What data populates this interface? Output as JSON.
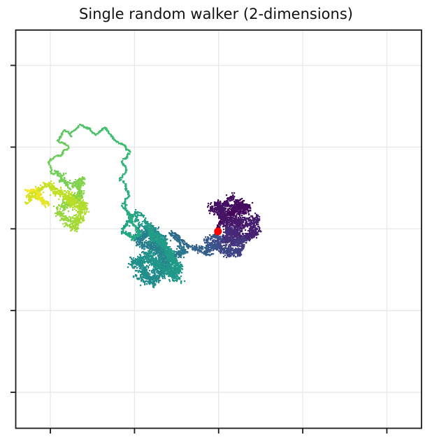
{
  "chart_data": {
    "type": "scatter",
    "title": "Single random walker (2-dimensions)",
    "description": "Trajectory of a single 2D random walker, points colored by time step (viridis colormap); red dot marks the starting point at the origin.",
    "xlabel": "",
    "ylabel": "",
    "xlim": [
      -60.3,
      60.3
    ],
    "ylim": [
      -61.0,
      60.8
    ],
    "xticks": [
      -50,
      -25,
      0,
      25,
      50
    ],
    "yticks": [
      -50,
      -25,
      0,
      25,
      50
    ],
    "tick_labels_visible": false,
    "ticks_sides": [
      "left",
      "bottom"
    ],
    "grid": true,
    "legend": "none",
    "colormap": "viridis",
    "viridis_stops": [
      "#440154",
      "#482475",
      "#414487",
      "#355f8d",
      "#2a788e",
      "#21918c",
      "#22a884",
      "#44bf70",
      "#7ad151",
      "#bddf26",
      "#fde725"
    ],
    "start_marker": {
      "x": -0.2,
      "y": -0.8,
      "color": "#ff0000",
      "radius_px": 5.5
    },
    "waypoints_format": [
      "x",
      "y",
      "time_fraction",
      "spread_px"
    ],
    "waypoints": [
      [
        -0.2,
        -0.9,
        0.0,
        6
      ],
      [
        1.2,
        3.6,
        0.01,
        10
      ],
      [
        5.4,
        6.8,
        0.02,
        12
      ],
      [
        8.5,
        5.8,
        0.03,
        12
      ],
      [
        3.3,
        8.3,
        0.04,
        13
      ],
      [
        -0.8,
        7.3,
        0.05,
        13
      ],
      [
        2.3,
        2.6,
        0.06,
        14
      ],
      [
        6.4,
        1.9,
        0.07,
        14
      ],
      [
        9.9,
        2.6,
        0.08,
        13
      ],
      [
        10.5,
        -1.1,
        0.09,
        12
      ],
      [
        7.0,
        -3.2,
        0.1,
        13
      ],
      [
        3.7,
        -0.6,
        0.11,
        13
      ],
      [
        1.2,
        -3.2,
        0.13,
        12
      ],
      [
        5.0,
        -4.9,
        0.15,
        12
      ],
      [
        7.9,
        -3.6,
        0.17,
        11
      ],
      [
        5.4,
        -7.1,
        0.19,
        11
      ],
      [
        1.7,
        -6.4,
        0.21,
        12
      ],
      [
        -1.7,
        -4.7,
        0.23,
        12
      ],
      [
        -0.4,
        -1.9,
        0.25,
        11
      ],
      [
        -3.3,
        -4.1,
        0.27,
        11
      ],
      [
        -2.5,
        -7.1,
        0.29,
        10
      ],
      [
        -5.6,
        -6.2,
        0.31,
        10
      ],
      [
        -8.7,
        -5.3,
        0.33,
        8
      ],
      [
        -11.6,
        -3.0,
        0.34,
        8
      ],
      [
        -14.0,
        -1.3,
        0.36,
        7
      ],
      [
        -11.8,
        -4.7,
        0.37,
        7
      ],
      [
        -10.1,
        -6.6,
        0.39,
        8
      ],
      [
        -13.2,
        -7.5,
        0.4,
        12
      ],
      [
        -16.9,
        -6.2,
        0.41,
        14
      ],
      [
        -21.1,
        -4.3,
        0.42,
        14
      ],
      [
        -23.6,
        -1.1,
        0.43,
        13
      ],
      [
        -20.7,
        0.2,
        0.44,
        13
      ],
      [
        -18.2,
        -3.2,
        0.45,
        15
      ],
      [
        -15.3,
        -9.6,
        0.46,
        15
      ],
      [
        -17.1,
        -13.7,
        0.47,
        15
      ],
      [
        -20.7,
        -15.8,
        0.48,
        14
      ],
      [
        -22.9,
        -12.6,
        0.49,
        14
      ],
      [
        -24.4,
        -9.4,
        0.5,
        14
      ],
      [
        -21.1,
        -7.5,
        0.51,
        15
      ],
      [
        -16.1,
        -12.6,
        0.52,
        15
      ],
      [
        -13.0,
        -14.7,
        0.53,
        13
      ],
      [
        -12.4,
        -10.7,
        0.54,
        13
      ],
      [
        -15.7,
        -5.3,
        0.55,
        13
      ],
      [
        -19.4,
        -1.1,
        0.555,
        12
      ],
      [
        -22.3,
        2.4,
        0.56,
        10
      ],
      [
        -24.8,
        4.5,
        0.57,
        9
      ],
      [
        -26.9,
        1.9,
        0.58,
        9
      ],
      [
        -28.5,
        -0.9,
        0.59,
        8
      ],
      [
        -25.6,
        -3.0,
        0.6,
        8
      ],
      [
        -23.8,
        -0.9,
        0.61,
        8
      ],
      [
        -26.4,
        4.1,
        0.615,
        7
      ],
      [
        -28.1,
        7.9,
        0.62,
        7
      ],
      [
        -27.1,
        11.8,
        0.63,
        5
      ],
      [
        -28.9,
        14.7,
        0.64,
        5
      ],
      [
        -27.3,
        18.0,
        0.65,
        4
      ],
      [
        -28.5,
        21.2,
        0.66,
        4
      ],
      [
        -26.2,
        23.1,
        0.67,
        4
      ],
      [
        -28.3,
        25.6,
        0.68,
        4
      ],
      [
        -31.2,
        28.0,
        0.69,
        4
      ],
      [
        -33.9,
        30.8,
        0.7,
        4
      ],
      [
        -36.4,
        28.8,
        0.71,
        4
      ],
      [
        -38.4,
        30.6,
        0.72,
        4
      ],
      [
        -41.5,
        31.4,
        0.73,
        4
      ],
      [
        -43.4,
        28.8,
        0.74,
        4
      ],
      [
        -45.7,
        30.1,
        0.75,
        4
      ],
      [
        -47.5,
        26.9,
        0.76,
        5
      ],
      [
        -45.0,
        24.8,
        0.77,
        5
      ],
      [
        -48.1,
        22.4,
        0.775,
        5
      ],
      [
        -50.4,
        20.3,
        0.78,
        5
      ],
      [
        -49.0,
        17.3,
        0.785,
        6
      ],
      [
        -46.7,
        15.2,
        0.79,
        10
      ],
      [
        -43.6,
        13.5,
        0.8,
        11
      ],
      [
        -40.9,
        14.5,
        0.81,
        11
      ],
      [
        -41.7,
        9.8,
        0.82,
        12
      ],
      [
        -44.8,
        7.7,
        0.83,
        12
      ],
      [
        -46.7,
        5.3,
        0.84,
        11
      ],
      [
        -44.8,
        2.4,
        0.85,
        11
      ],
      [
        -43.0,
        0.0,
        0.86,
        10
      ],
      [
        -41.9,
        3.4,
        0.87,
        11
      ],
      [
        -40.3,
        6.6,
        0.88,
        12
      ],
      [
        -43.4,
        8.8,
        0.89,
        12
      ],
      [
        -46.1,
        10.9,
        0.9,
        12
      ],
      [
        -49.2,
        12.0,
        0.91,
        11
      ],
      [
        -52.1,
        13.0,
        0.92,
        10
      ],
      [
        -55.0,
        10.7,
        0.93,
        9
      ],
      [
        -56.6,
        8.8,
        0.94,
        9
      ],
      [
        -53.3,
        9.6,
        0.95,
        9
      ],
      [
        -51.0,
        7.7,
        0.96,
        9
      ],
      [
        -54.1,
        11.8,
        0.98,
        8
      ],
      [
        -56.4,
        11.5,
        1.0,
        8
      ]
    ]
  },
  "figure": {
    "background": "#ffffff",
    "spine_color": "#1c1c1c",
    "grid_color": "#e7e7e7",
    "title_color": "#111111"
  }
}
